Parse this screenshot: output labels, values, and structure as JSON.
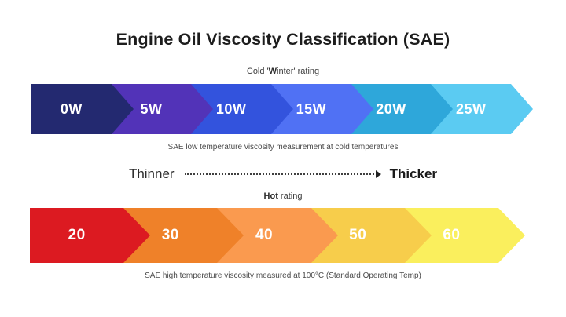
{
  "title": "Engine Oil Viscosity Classification (SAE)",
  "winter_bar": {
    "heading": {
      "pre": "Cold '",
      "bold": "W",
      "post": "inter' rating"
    },
    "caption": "SAE low temperature viscosity measurement at cold temperatures",
    "segments": [
      {
        "label": "0W",
        "color": "#232970"
      },
      {
        "label": "5W",
        "color": "#5233b8"
      },
      {
        "label": "10W",
        "color": "#3353dd"
      },
      {
        "label": "15W",
        "color": "#5071f4"
      },
      {
        "label": "20W",
        "color": "#2ea7da"
      },
      {
        "label": "25W",
        "color": "#5bcbf2"
      }
    ]
  },
  "comparison": {
    "left": "Thinner",
    "right": "Thicker"
  },
  "hot_bar": {
    "heading": {
      "pre": "",
      "bold": "Hot",
      "post": " rating"
    },
    "caption": "SAE high temperature viscosity measured at 100°C (Standard Operating Temp)",
    "segments": [
      {
        "label": "20",
        "color": "#dc1a21"
      },
      {
        "label": "30",
        "color": "#ef8129"
      },
      {
        "label": "40",
        "color": "#fa9a4f"
      },
      {
        "label": "50",
        "color": "#f7cd4b"
      },
      {
        "label": "60",
        "color": "#faef5d"
      }
    ]
  },
  "colors": {
    "background": "#ffffff",
    "title_text": "#1d1d1d",
    "caption_text": "#4a4a4a",
    "segment_label_text": "#ffffff"
  }
}
